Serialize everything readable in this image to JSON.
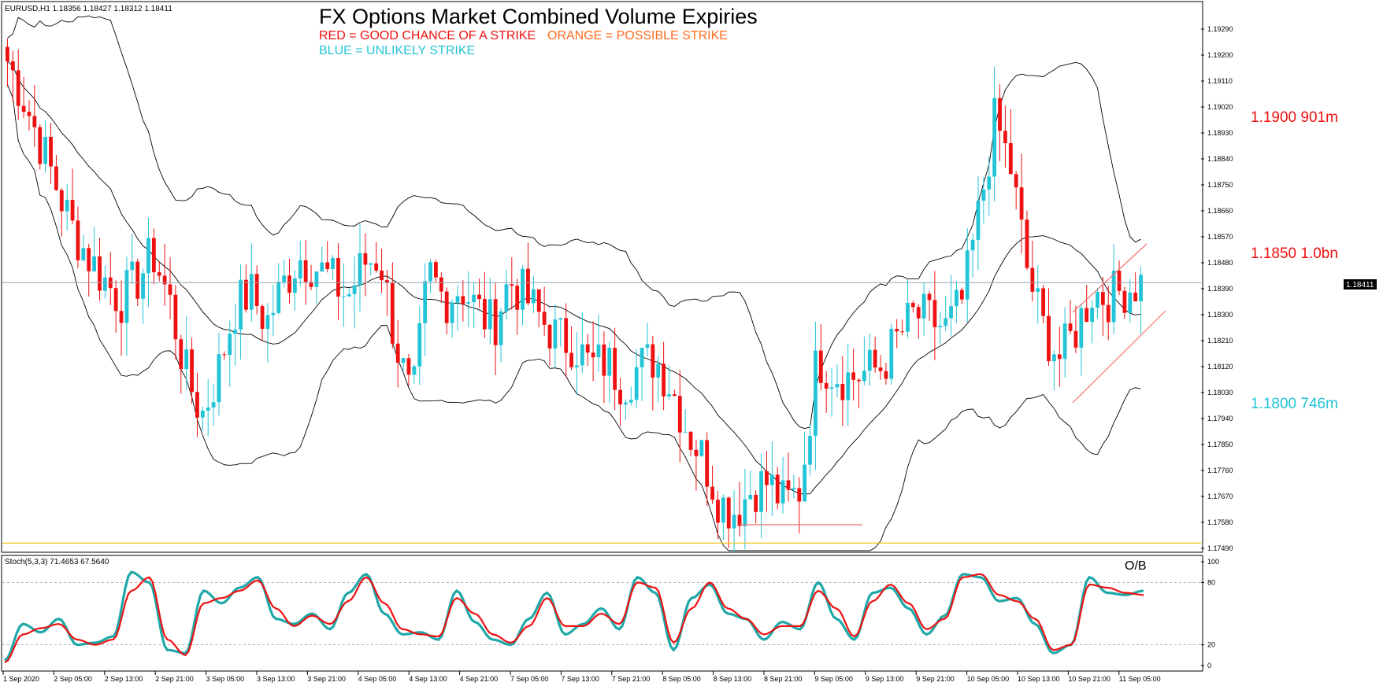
{
  "chart_data": [
    {
      "type": "candlestick",
      "symbol_header": "EURUSD,H1  1.18356 1.18427 1.18312 1.18411",
      "title": "FX Options Market Combined Volume Expiries",
      "legend": {
        "red": "RED = GOOD CHANCE OF A STRIKE",
        "orange": "ORANGE = POSSIBLE STRIKE",
        "blue": "BLUE = UNLIKELY STRIKE"
      },
      "strikes": [
        {
          "label": "1.1900 901m",
          "price": 1.19,
          "color": "#ee1111"
        },
        {
          "label": "1.1850 1.0bn",
          "price": 1.185,
          "color": "#ee1111"
        },
        {
          "label": "1.1800 746m",
          "price": 1.18,
          "color": "#22c4d6"
        }
      ],
      "current_price": 1.18411,
      "current_price_label": "1.18411",
      "support_line_price": 1.175,
      "y_ticks": [
        "1.19290",
        "1.19200",
        "1.19110",
        "1.19020",
        "1.18930",
        "1.18840",
        "1.18750",
        "1.18660",
        "1.18570",
        "1.18480",
        "1.18390",
        "1.18300",
        "1.18210",
        "1.18120",
        "1.18030",
        "1.17940",
        "1.17850",
        "1.17760",
        "1.17670",
        "1.17580",
        "1.17490"
      ],
      "ylim": [
        1.1749,
        1.1929
      ],
      "x_ticks": [
        "1 Sep 2020",
        "2 Sep 05:00",
        "2 Sep 13:00",
        "2 Sep 21:00",
        "3 Sep 05:00",
        "3 Sep 13:00",
        "3 Sep 21:00",
        "4 Sep 05:00",
        "4 Sep 13:00",
        "4 Sep 21:00",
        "7 Sep 05:00",
        "7 Sep 13:00",
        "7 Sep 21:00",
        "8 Sep 05:00",
        "8 Sep 13:00",
        "8 Sep 21:00",
        "9 Sep 05:00",
        "9 Sep 13:00",
        "9 Sep 21:00",
        "10 Sep 05:00",
        "10 Sep 13:00",
        "10 Sep 21:00",
        "11 Sep 05:00"
      ],
      "close_path": [
        1.1918,
        1.1905,
        1.189,
        1.1875,
        1.186,
        1.185,
        1.1842,
        1.1835,
        1.1842,
        1.1851,
        1.1835,
        1.181,
        1.1795,
        1.181,
        1.1832,
        1.1838,
        1.1827,
        1.184,
        1.185,
        1.1847,
        1.1842,
        1.1836,
        1.1848,
        1.185,
        1.182,
        1.1798,
        1.1845,
        1.1835,
        1.184,
        1.1832,
        1.1826,
        1.1842,
        1.1836,
        1.1828,
        1.1822,
        1.182,
        1.1812,
        1.1814,
        1.1806,
        1.1812,
        1.1815,
        1.1805,
        1.179,
        1.178,
        1.1765,
        1.1762,
        1.177,
        1.1772,
        1.1764,
        1.177,
        1.1815,
        1.181,
        1.1808,
        1.181,
        1.1812,
        1.1822,
        1.183,
        1.1828,
        1.1825,
        1.1835,
        1.1865,
        1.1898,
        1.188,
        1.1845,
        1.1825,
        1.1815,
        1.1825,
        1.1838,
        1.1836,
        1.1839,
        1.1841
      ]
    },
    {
      "type": "line",
      "header": "Stoch(5,3,3) 71.4653 67.5640",
      "ob_label": "O/B",
      "y_ticks": [
        "100",
        "80",
        "20",
        "0"
      ],
      "levels": [
        80,
        20
      ],
      "ylim": [
        0,
        100
      ],
      "series": [
        {
          "color": "#20a8a8",
          "values": [
            5,
            40,
            32,
            45,
            20,
            22,
            28,
            90,
            80,
            15,
            12,
            72,
            60,
            75,
            85,
            45,
            40,
            50,
            35,
            70,
            88,
            50,
            30,
            32,
            25,
            72,
            42,
            25,
            20,
            45,
            70,
            30,
            40,
            55,
            35,
            85,
            70,
            15,
            65,
            78,
            50,
            45,
            25,
            42,
            35,
            80,
            45,
            25,
            70,
            75,
            55,
            30,
            48,
            88,
            85,
            62,
            65,
            40,
            12,
            20,
            85,
            70,
            68,
            72
          ]
        },
        {
          "color": "#ee1111",
          "values": [
            3,
            30,
            36,
            40,
            25,
            20,
            25,
            72,
            85,
            25,
            10,
            60,
            65,
            72,
            82,
            55,
            38,
            48,
            40,
            62,
            85,
            60,
            35,
            30,
            28,
            65,
            50,
            30,
            22,
            38,
            65,
            38,
            38,
            50,
            40,
            80,
            75,
            22,
            55,
            80,
            55,
            45,
            30,
            38,
            38,
            72,
            55,
            28,
            62,
            78,
            60,
            35,
            45,
            85,
            88,
            68,
            62,
            45,
            15,
            20,
            78,
            75,
            70,
            68
          ]
        }
      ]
    }
  ]
}
